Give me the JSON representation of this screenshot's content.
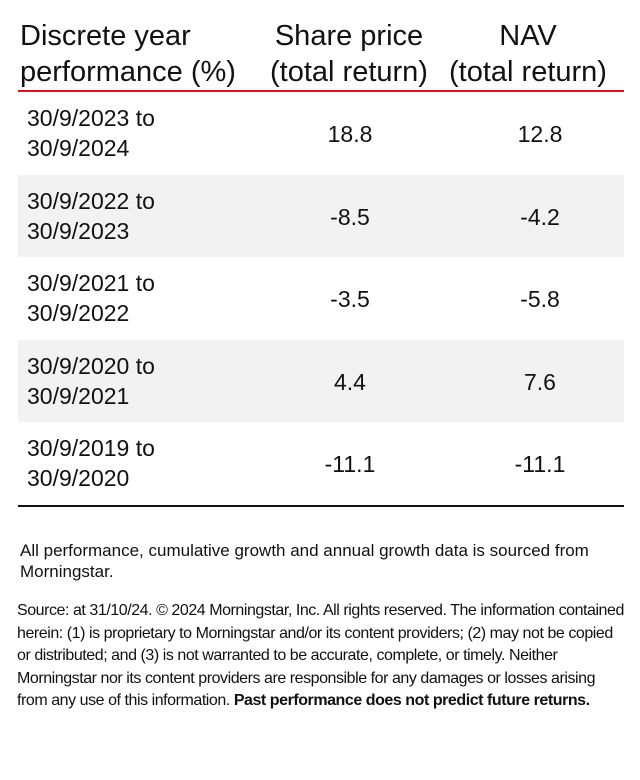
{
  "header": {
    "col1_line1": "Discrete year",
    "col1_line2": "performance (%)",
    "col2_line1": "Share price",
    "col2_line2": "(total return)",
    "col3_line1": "NAV",
    "col3_line2": "(total return)"
  },
  "rows": [
    {
      "from": "30/9/2023 to",
      "to": "30/9/2024",
      "share_price": "18.8",
      "nav": "12.8"
    },
    {
      "from": "30/9/2022 to",
      "to": "30/9/2023",
      "share_price": "-8.5",
      "nav": "-4.2"
    },
    {
      "from": "30/9/2021 to",
      "to": "30/9/2022",
      "share_price": "-3.5",
      "nav": "-5.8"
    },
    {
      "from": "30/9/2020 to",
      "to": "30/9/2021",
      "share_price": "4.4",
      "nav": "7.6"
    },
    {
      "from": "30/9/2019 to",
      "to": "30/9/2020",
      "share_price": "-11.1",
      "nav": "-11.1"
    }
  ],
  "notes": {
    "data_source": "All performance, cumulative growth and annual growth data is sourced from Morningstar.",
    "disclaimer": "Source: at 31/10/24. © 2024 Morningstar, Inc. All rights reserved. The information contained herein: (1) is proprietary to Morningstar and/or its content providers; (2) may not be copied or distributed; and (3) is not warranted to be accurate, complete, or timely. Neither Morningstar nor its content providers are responsible for any damages or losses arising from any use of this information.",
    "disclaimer_bold": "Past performance does not predict future returns."
  },
  "colors": {
    "header_rule": "#e01020",
    "alt_row": "#f2f2f2"
  }
}
